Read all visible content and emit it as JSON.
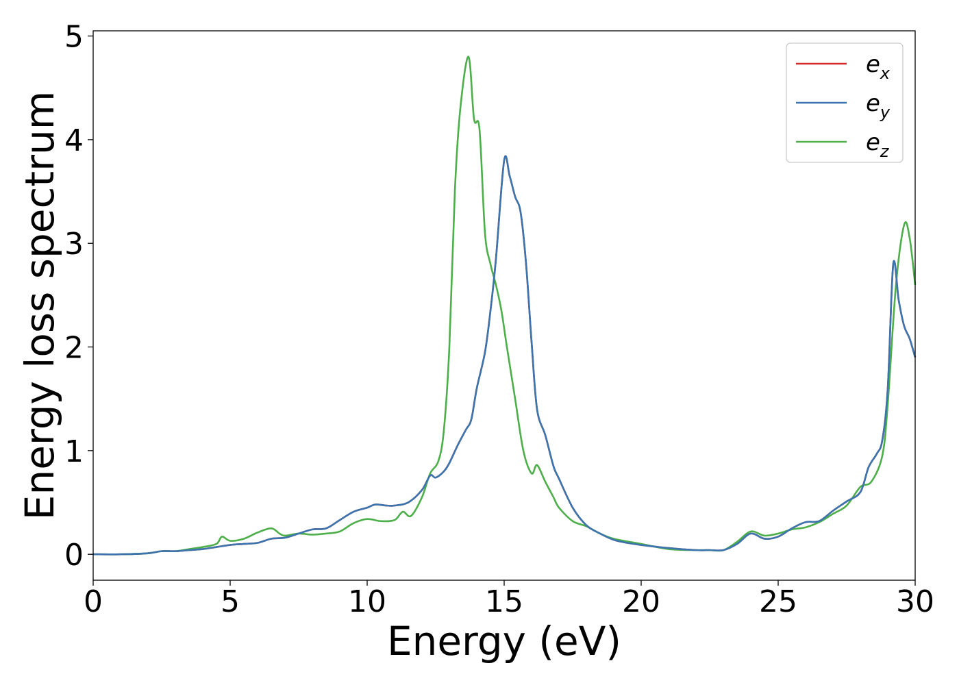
{
  "chart_data": {
    "type": "line",
    "xlabel": "Energy (eV)",
    "ylabel": "Energy loss spectrum",
    "xlim": [
      0,
      30
    ],
    "ylim": [
      -0.25,
      5.05
    ],
    "xticks": [
      0,
      5,
      10,
      15,
      20,
      25,
      30
    ],
    "yticks": [
      0,
      1,
      2,
      3,
      4,
      5
    ],
    "grid": false,
    "legend_position": "top-right",
    "series": [
      {
        "name": "e",
        "subscript": "x",
        "color": "#d62728",
        "x": [
          0,
          1,
          2,
          2.5,
          3,
          3.5,
          4,
          4.5,
          5,
          5.5,
          6,
          6.5,
          7,
          7.5,
          8,
          8.5,
          9,
          9.5,
          10,
          10.3,
          10.7,
          11,
          11.5,
          12,
          12.3,
          12.5,
          12.8,
          13,
          13.3,
          13.6,
          13.8,
          14,
          14.3,
          14.5,
          14.7,
          15,
          15.2,
          15.4,
          15.6,
          15.8,
          16,
          16.2,
          16.5,
          16.8,
          17,
          17.5,
          18,
          18.5,
          19,
          19.5,
          20,
          21,
          22,
          22.5,
          23,
          23.5,
          24,
          24.5,
          25,
          25.5,
          26,
          26.5,
          27,
          27.5,
          28,
          28.3,
          28.6,
          28.8,
          29,
          29.2,
          29.4,
          29.6,
          29.8,
          30
        ],
        "values": [
          0,
          0,
          0.01,
          0.03,
          0.03,
          0.04,
          0.05,
          0.07,
          0.09,
          0.1,
          0.11,
          0.15,
          0.16,
          0.2,
          0.24,
          0.25,
          0.33,
          0.41,
          0.45,
          0.48,
          0.47,
          0.47,
          0.5,
          0.62,
          0.76,
          0.74,
          0.8,
          0.88,
          1.05,
          1.2,
          1.3,
          1.6,
          1.95,
          2.35,
          2.85,
          3.8,
          3.65,
          3.45,
          3.3,
          2.8,
          2.05,
          1.4,
          1.15,
          0.85,
          0.73,
          0.45,
          0.28,
          0.2,
          0.14,
          0.11,
          0.09,
          0.06,
          0.04,
          0.04,
          0.04,
          0.1,
          0.2,
          0.15,
          0.17,
          0.25,
          0.31,
          0.32,
          0.42,
          0.51,
          0.6,
          0.84,
          0.97,
          1.1,
          1.6,
          2.8,
          2.45,
          2.2,
          2.08,
          1.9
        ]
      },
      {
        "name": "e",
        "subscript": "y",
        "color": "#3b75af",
        "x": [
          0,
          1,
          2,
          2.5,
          3,
          3.5,
          4,
          4.5,
          5,
          5.5,
          6,
          6.5,
          7,
          7.5,
          8,
          8.5,
          9,
          9.5,
          10,
          10.3,
          10.7,
          11,
          11.5,
          12,
          12.3,
          12.5,
          12.8,
          13,
          13.3,
          13.6,
          13.8,
          14,
          14.3,
          14.5,
          14.7,
          15,
          15.2,
          15.4,
          15.6,
          15.8,
          16,
          16.2,
          16.5,
          16.8,
          17,
          17.5,
          18,
          18.5,
          19,
          19.5,
          20,
          21,
          22,
          22.5,
          23,
          23.5,
          24,
          24.5,
          25,
          25.5,
          26,
          26.5,
          27,
          27.5,
          28,
          28.3,
          28.6,
          28.8,
          29,
          29.2,
          29.4,
          29.6,
          29.8,
          30
        ],
        "values": [
          0,
          0,
          0.01,
          0.03,
          0.03,
          0.04,
          0.05,
          0.07,
          0.09,
          0.1,
          0.11,
          0.15,
          0.16,
          0.2,
          0.24,
          0.25,
          0.33,
          0.41,
          0.45,
          0.48,
          0.47,
          0.47,
          0.5,
          0.62,
          0.76,
          0.74,
          0.8,
          0.88,
          1.05,
          1.2,
          1.3,
          1.6,
          1.95,
          2.35,
          2.85,
          3.8,
          3.65,
          3.45,
          3.3,
          2.8,
          2.05,
          1.4,
          1.15,
          0.85,
          0.73,
          0.45,
          0.28,
          0.2,
          0.14,
          0.11,
          0.09,
          0.06,
          0.04,
          0.04,
          0.04,
          0.1,
          0.2,
          0.15,
          0.17,
          0.25,
          0.31,
          0.32,
          0.42,
          0.51,
          0.6,
          0.84,
          0.97,
          1.1,
          1.6,
          2.8,
          2.45,
          2.2,
          2.08,
          1.9
        ]
      },
      {
        "name": "e",
        "subscript": "z",
        "color": "#4daf4a",
        "x": [
          0,
          1,
          2,
          2.5,
          3,
          3.5,
          4,
          4.5,
          4.7,
          5,
          5.5,
          6,
          6.5,
          6.8,
          7,
          7.5,
          8,
          8.5,
          9,
          9.5,
          10,
          10.5,
          11,
          11.3,
          11.6,
          12,
          12.3,
          12.6,
          12.8,
          13,
          13.2,
          13.4,
          13.7,
          13.9,
          14.1,
          14.3,
          14.5,
          14.7,
          14.9,
          15.1,
          15.4,
          15.7,
          16,
          16.2,
          16.5,
          16.8,
          17,
          17.5,
          18,
          18.5,
          19,
          20,
          21,
          22,
          22.5,
          23,
          23.5,
          24,
          24.5,
          25,
          25.5,
          26,
          26.5,
          27,
          27.5,
          28,
          28.4,
          28.8,
          29,
          29.3,
          29.6,
          29.8,
          30
        ],
        "values": [
          0,
          0,
          0.01,
          0.03,
          0.03,
          0.05,
          0.07,
          0.1,
          0.17,
          0.13,
          0.15,
          0.21,
          0.25,
          0.2,
          0.18,
          0.2,
          0.19,
          0.2,
          0.22,
          0.3,
          0.34,
          0.32,
          0.33,
          0.41,
          0.37,
          0.55,
          0.78,
          0.9,
          1.2,
          2.0,
          3.5,
          4.3,
          4.8,
          4.2,
          4.1,
          3.1,
          2.8,
          2.6,
          2.35,
          2.0,
          1.5,
          1.0,
          0.78,
          0.86,
          0.7,
          0.55,
          0.45,
          0.32,
          0.27,
          0.2,
          0.15,
          0.1,
          0.05,
          0.04,
          0.04,
          0.04,
          0.12,
          0.22,
          0.18,
          0.2,
          0.24,
          0.26,
          0.31,
          0.39,
          0.47,
          0.65,
          0.7,
          0.95,
          1.45,
          2.6,
          3.18,
          3.05,
          2.6
        ]
      }
    ]
  }
}
